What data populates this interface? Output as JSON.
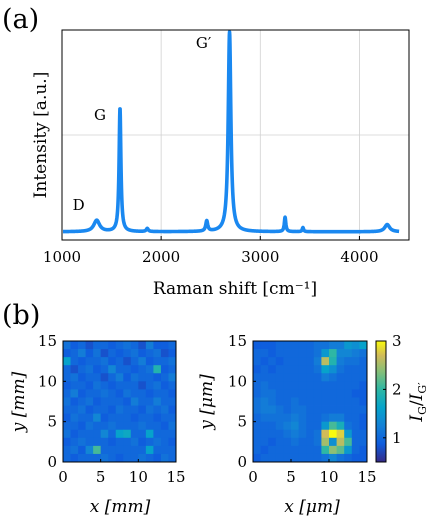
{
  "panels": {
    "a": "(a)",
    "b": "(b)"
  },
  "chart_data": [
    {
      "type": "line",
      "panel": "(a)",
      "xlabel": "Raman shift [cm⁻¹]",
      "ylabel": "Intensity [a.u.]",
      "xlim": [
        1000,
        4500
      ],
      "ylim": [
        0,
        1.02
      ],
      "xticks": [
        "1000",
        "2000",
        "3000",
        "4000"
      ],
      "grid": true,
      "color": "#1a88f0",
      "baseline": 0.04,
      "peaks": [
        {
          "label": "D",
          "x": 1350,
          "height": 0.055,
          "width": 35
        },
        {
          "label": "G",
          "x": 1585,
          "height": 0.6,
          "width": 11
        },
        {
          "label": "G′",
          "x": 2690,
          "height": 0.97,
          "width": 16
        },
        {
          "label": "",
          "x": 1860,
          "height": 0.015,
          "width": 12
        },
        {
          "label": "",
          "x": 2460,
          "height": 0.05,
          "width": 12
        },
        {
          "label": "",
          "x": 3250,
          "height": 0.07,
          "width": 9
        },
        {
          "label": "",
          "x": 3430,
          "height": 0.02,
          "width": 8
        },
        {
          "label": "",
          "x": 4280,
          "height": 0.035,
          "width": 30
        }
      ]
    },
    {
      "type": "heatmap",
      "panel": "(b) left",
      "xlabel": "x [mm]",
      "ylabel": "y [mm]",
      "xlim": [
        0,
        15
      ],
      "ylim": [
        0,
        15
      ],
      "ticks": [
        "0",
        "5",
        "10",
        "15"
      ],
      "grid_size": [
        15,
        15
      ],
      "values": [
        [
          1.1,
          0.9,
          1.0,
          0.8,
          1.0,
          1.0,
          0.9,
          1.0,
          1.1,
          1.0,
          0.8,
          1.2,
          0.9,
          0.9,
          1.0
        ],
        [
          0.9,
          1.0,
          1.2,
          0.9,
          1.1,
          0.8,
          1.0,
          0.9,
          1.0,
          1.1,
          0.9,
          1.0,
          1.1,
          0.8,
          0.9
        ],
        [
          1.6,
          1.0,
          0.9,
          1.0,
          1.0,
          1.1,
          0.9,
          1.0,
          0.8,
          1.0,
          1.2,
          0.9,
          1.0,
          1.0,
          1.1
        ],
        [
          1.0,
          0.8,
          1.0,
          1.1,
          0.9,
          1.0,
          1.3,
          1.0,
          1.0,
          0.9,
          1.0,
          1.1,
          1.9,
          0.9,
          1.0
        ],
        [
          1.0,
          1.1,
          0.9,
          1.0,
          1.0,
          0.8,
          1.0,
          1.2,
          0.9,
          1.1,
          1.0,
          1.0,
          0.9,
          1.0,
          1.2
        ],
        [
          0.9,
          1.0,
          1.0,
          0.9,
          1.1,
          1.0,
          0.9,
          1.0,
          1.0,
          1.0,
          0.8,
          1.0,
          1.1,
          0.9,
          1.0
        ],
        [
          1.0,
          1.2,
          0.9,
          1.0,
          1.0,
          1.1,
          1.0,
          0.9,
          1.1,
          1.0,
          1.0,
          0.9,
          1.0,
          1.0,
          0.9
        ],
        [
          1.1,
          0.9,
          1.0,
          1.1,
          0.9,
          1.0,
          1.0,
          1.0,
          0.9,
          1.2,
          1.0,
          1.0,
          1.2,
          1.0,
          1.0
        ],
        [
          1.0,
          1.0,
          1.1,
          0.9,
          1.0,
          1.0,
          0.9,
          1.1,
          1.0,
          1.0,
          0.9,
          1.1,
          1.0,
          1.1,
          0.9
        ],
        [
          0.9,
          1.1,
          1.0,
          1.0,
          1.3,
          0.9,
          1.0,
          1.0,
          1.0,
          0.9,
          1.0,
          1.0,
          0.9,
          1.0,
          1.0
        ],
        [
          1.0,
          1.0,
          0.9,
          1.1,
          1.0,
          1.0,
          1.1,
          1.0,
          1.0,
          1.0,
          1.1,
          1.0,
          1.0,
          0.9,
          1.1
        ],
        [
          1.1,
          0.9,
          1.0,
          1.0,
          1.0,
          1.3,
          1.0,
          1.6,
          1.7,
          1.0,
          1.0,
          1.6,
          1.0,
          1.0,
          1.0
        ],
        [
          0.9,
          1.0,
          1.1,
          1.0,
          1.0,
          1.0,
          0.9,
          1.0,
          1.0,
          1.1,
          0.9,
          1.0,
          1.1,
          1.0,
          0.9
        ],
        [
          1.0,
          1.1,
          0.9,
          1.3,
          2.1,
          1.0,
          1.0,
          1.0,
          1.0,
          1.0,
          1.0,
          1.6,
          1.0,
          1.0,
          1.0
        ],
        [
          1.0,
          0.9,
          1.0,
          1.0,
          1.0,
          1.1,
          1.0,
          0.9,
          1.0,
          1.0,
          1.1,
          1.0,
          0.9,
          1.1,
          1.0
        ]
      ]
    },
    {
      "type": "heatmap",
      "panel": "(b) right",
      "xlabel": "x [μm]",
      "ylabel": "y [μm]",
      "xlim": [
        0,
        15
      ],
      "ylim": [
        0,
        15
      ],
      "ticks": [
        "0",
        "5",
        "10",
        "15"
      ],
      "grid_size": [
        15,
        15
      ],
      "values": [
        [
          0.9,
          0.9,
          0.9,
          1.0,
          1.0,
          1.0,
          1.0,
          1.0,
          1.1,
          1.1,
          1.2,
          1.2,
          1.5,
          1.4,
          1.6
        ],
        [
          1.0,
          1.0,
          0.9,
          1.0,
          1.0,
          1.0,
          1.0,
          1.0,
          1.1,
          1.5,
          2.0,
          1.3,
          1.3,
          1.2,
          1.1
        ],
        [
          1.0,
          0.9,
          1.0,
          0.9,
          1.0,
          1.0,
          1.0,
          1.0,
          1.2,
          2.6,
          1.9,
          1.2,
          1.1,
          1.1,
          1.0
        ],
        [
          0.9,
          1.0,
          0.9,
          1.0,
          1.0,
          1.0,
          1.0,
          1.0,
          1.1,
          1.6,
          1.4,
          1.1,
          1.0,
          1.0,
          1.0
        ],
        [
          1.0,
          1.0,
          1.0,
          1.0,
          1.0,
          1.0,
          1.0,
          1.0,
          1.0,
          1.2,
          1.1,
          1.0,
          1.0,
          1.0,
          1.0
        ],
        [
          1.0,
          1.1,
          1.0,
          1.0,
          1.0,
          1.0,
          1.0,
          1.0,
          1.0,
          1.0,
          1.0,
          1.0,
          1.0,
          1.0,
          0.9
        ],
        [
          1.0,
          1.1,
          1.1,
          1.0,
          1.0,
          1.0,
          1.0,
          1.0,
          1.0,
          1.0,
          1.0,
          1.0,
          1.0,
          0.9,
          0.9
        ],
        [
          1.1,
          1.2,
          1.1,
          1.0,
          1.0,
          1.1,
          1.0,
          1.0,
          1.0,
          1.0,
          1.0,
          1.0,
          1.0,
          1.0,
          0.9
        ],
        [
          1.1,
          1.2,
          1.2,
          1.1,
          1.0,
          1.1,
          1.1,
          1.0,
          1.0,
          1.0,
          1.0,
          1.0,
          1.0,
          1.0,
          1.0
        ],
        [
          1.0,
          1.1,
          1.1,
          1.1,
          1.1,
          1.2,
          1.1,
          1.0,
          1.0,
          1.1,
          1.2,
          1.2,
          1.0,
          1.0,
          0.9
        ],
        [
          1.0,
          1.0,
          1.0,
          1.1,
          1.2,
          1.3,
          1.1,
          1.0,
          1.0,
          1.5,
          2.1,
          1.8,
          1.1,
          1.0,
          0.9
        ],
        [
          1.0,
          1.0,
          1.0,
          1.0,
          1.1,
          1.2,
          1.1,
          1.0,
          1.1,
          2.7,
          3.0,
          2.8,
          1.5,
          1.0,
          1.0
        ],
        [
          1.0,
          1.0,
          0.9,
          1.0,
          1.0,
          1.1,
          1.0,
          1.0,
          1.1,
          2.5,
          1.4,
          2.6,
          2.1,
          1.0,
          1.0
        ],
        [
          1.0,
          0.9,
          1.0,
          1.0,
          1.0,
          1.0,
          1.0,
          1.0,
          1.0,
          2.0,
          2.4,
          2.2,
          1.5,
          1.0,
          0.9
        ],
        [
          0.9,
          1.0,
          1.0,
          1.0,
          1.0,
          1.0,
          1.0,
          1.0,
          1.0,
          1.1,
          1.3,
          1.1,
          1.0,
          0.9,
          0.9
        ]
      ]
    },
    {
      "type": "colorbar",
      "label": "I_G/I_G′",
      "range": [
        0.5,
        3
      ],
      "ticks": [
        "1",
        "2",
        "3"
      ],
      "colormap": "parula"
    }
  ]
}
